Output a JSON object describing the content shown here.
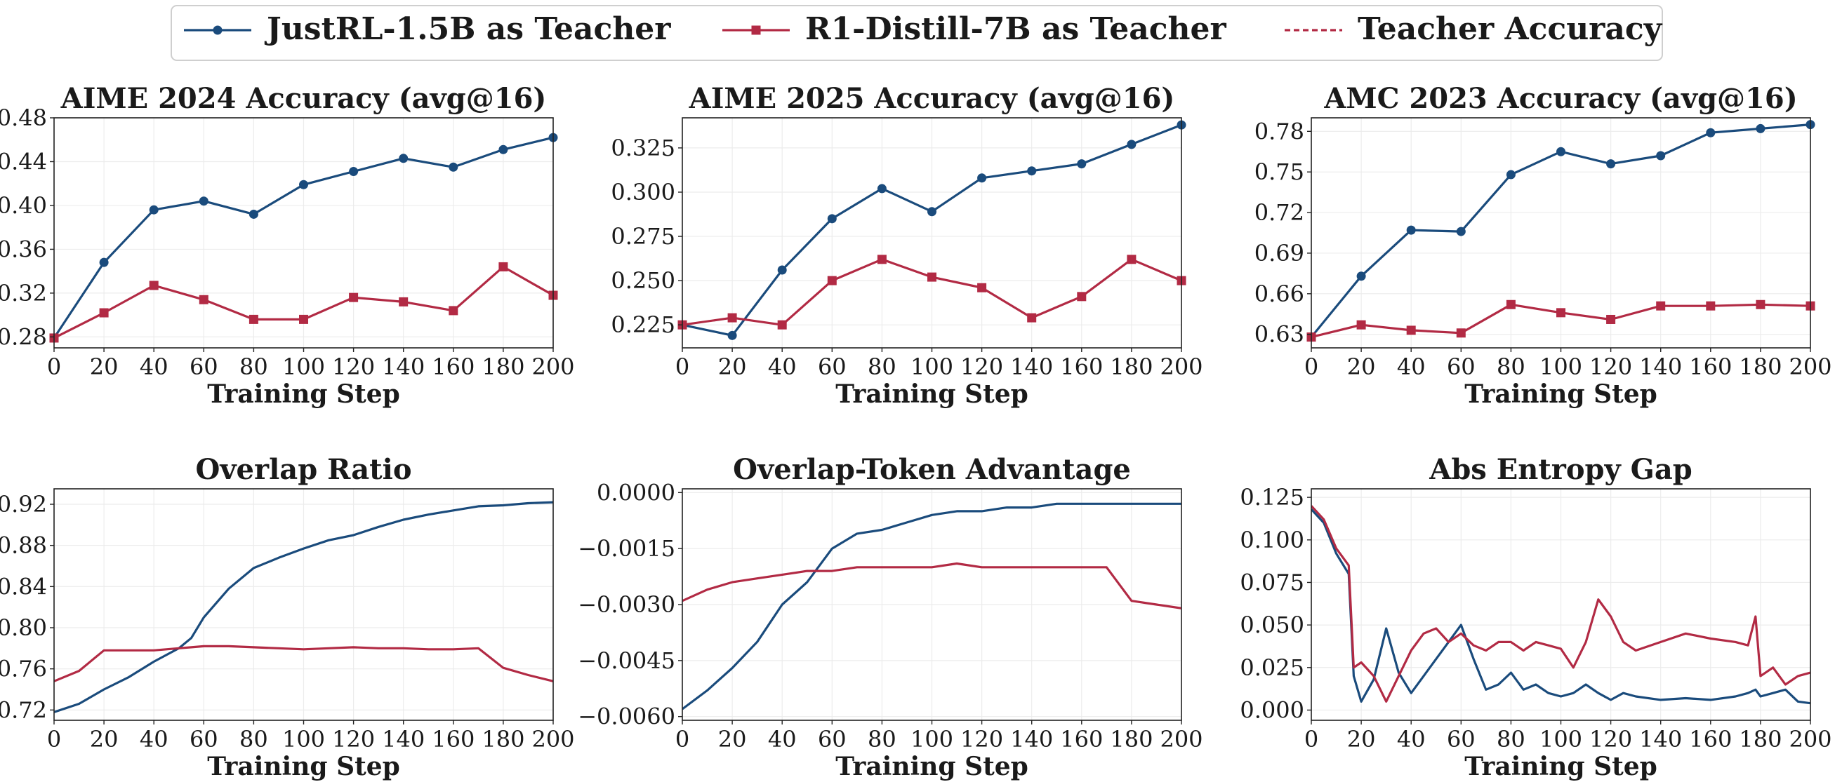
{
  "legend": {
    "placement": "top-center",
    "entries": [
      {
        "label": "JustRL-1.5B as Teacher",
        "color": "#1a4b7c",
        "marker": "circle",
        "style": "solid"
      },
      {
        "label": "R1-Distill-7B as Teacher",
        "color": "#b22a44",
        "marker": "square",
        "style": "solid"
      },
      {
        "label": "Teacher Accuracy",
        "color": "#b22a44",
        "marker": "none",
        "style": "dashed"
      }
    ]
  },
  "chart_data": [
    {
      "type": "line",
      "title": "AIME 2024 Accuracy (avg@16)",
      "xlabel": "Training Step",
      "ylabel": "",
      "xlim": [
        0,
        200
      ],
      "ylim": [
        0.27,
        0.48
      ],
      "xticks": [
        "0",
        "20",
        "40",
        "60",
        "80",
        "100",
        "120",
        "140",
        "160",
        "180",
        "200"
      ],
      "yticks": [
        "0.28",
        "0.32",
        "0.36",
        "0.40",
        "0.44",
        "0.48"
      ],
      "grid": true,
      "x": [
        0,
        20,
        40,
        60,
        80,
        100,
        120,
        140,
        160,
        180,
        200
      ],
      "series": [
        {
          "name": "JustRL-1.5B as Teacher",
          "color": "#1a4b7c",
          "marker": "circle",
          "values": [
            0.279,
            0.348,
            0.396,
            0.404,
            0.392,
            0.419,
            0.431,
            0.443,
            0.435,
            0.451,
            0.462
          ]
        },
        {
          "name": "R1-Distill-7B as Teacher",
          "color": "#b22a44",
          "marker": "square",
          "values": [
            0.279,
            0.302,
            0.327,
            0.314,
            0.296,
            0.296,
            0.316,
            0.312,
            0.304,
            0.344,
            0.318
          ]
        }
      ]
    },
    {
      "type": "line",
      "title": "AIME 2025 Accuracy (avg@16)",
      "xlabel": "Training Step",
      "ylabel": "",
      "xlim": [
        0,
        200
      ],
      "ylim": [
        0.212,
        0.342
      ],
      "xticks": [
        "0",
        "20",
        "40",
        "60",
        "80",
        "100",
        "120",
        "140",
        "160",
        "180",
        "200"
      ],
      "yticks": [
        "0.225",
        "0.250",
        "0.275",
        "0.300",
        "0.325"
      ],
      "grid": true,
      "x": [
        0,
        20,
        40,
        60,
        80,
        100,
        120,
        140,
        160,
        180,
        200
      ],
      "series": [
        {
          "name": "JustRL-1.5B as Teacher",
          "color": "#1a4b7c",
          "marker": "circle",
          "values": [
            0.225,
            0.219,
            0.256,
            0.285,
            0.302,
            0.289,
            0.308,
            0.312,
            0.316,
            0.327,
            0.338
          ]
        },
        {
          "name": "R1-Distill-7B as Teacher",
          "color": "#b22a44",
          "marker": "square",
          "values": [
            0.225,
            0.229,
            0.225,
            0.25,
            0.262,
            0.252,
            0.246,
            0.229,
            0.241,
            0.262,
            0.25
          ]
        }
      ]
    },
    {
      "type": "line",
      "title": "AMC 2023 Accuracy (avg@16)",
      "xlabel": "Training Step",
      "ylabel": "",
      "xlim": [
        0,
        200
      ],
      "ylim": [
        0.62,
        0.79
      ],
      "xticks": [
        "0",
        "20",
        "40",
        "60",
        "80",
        "100",
        "120",
        "140",
        "160",
        "180",
        "200"
      ],
      "yticks": [
        "0.63",
        "0.66",
        "0.69",
        "0.72",
        "0.75",
        "0.78"
      ],
      "grid": true,
      "x": [
        0,
        20,
        40,
        60,
        80,
        100,
        120,
        140,
        160,
        180,
        200
      ],
      "series": [
        {
          "name": "JustRL-1.5B as Teacher",
          "color": "#1a4b7c",
          "marker": "circle",
          "values": [
            0.628,
            0.673,
            0.707,
            0.706,
            0.748,
            0.765,
            0.756,
            0.762,
            0.779,
            0.782,
            0.785
          ]
        },
        {
          "name": "R1-Distill-7B as Teacher",
          "color": "#b22a44",
          "marker": "square",
          "values": [
            0.628,
            0.637,
            0.633,
            0.631,
            0.652,
            0.646,
            0.641,
            0.651,
            0.651,
            0.652,
            0.651
          ]
        }
      ]
    },
    {
      "type": "line",
      "title": "Overlap Ratio",
      "xlabel": "Training Step",
      "ylabel": "",
      "xlim": [
        0,
        200
      ],
      "ylim": [
        0.71,
        0.935
      ],
      "xticks": [
        "0",
        "20",
        "40",
        "60",
        "80",
        "100",
        "120",
        "140",
        "160",
        "180",
        "200"
      ],
      "yticks": [
        "0.72",
        "0.76",
        "0.80",
        "0.84",
        "0.88",
        "0.92"
      ],
      "grid": true,
      "x": [
        0,
        10,
        20,
        30,
        40,
        50,
        55,
        60,
        70,
        80,
        90,
        100,
        110,
        120,
        130,
        140,
        150,
        160,
        170,
        180,
        190,
        200
      ],
      "series": [
        {
          "name": "JustRL-1.5B as Teacher",
          "color": "#1a4b7c",
          "marker": "none",
          "values": [
            0.718,
            0.726,
            0.74,
            0.752,
            0.767,
            0.78,
            0.79,
            0.81,
            0.838,
            0.858,
            0.868,
            0.877,
            0.885,
            0.89,
            0.898,
            0.905,
            0.91,
            0.914,
            0.918,
            0.919,
            0.921,
            0.922
          ]
        },
        {
          "name": "R1-Distill-7B as Teacher",
          "color": "#b22a44",
          "marker": "none",
          "values": [
            0.748,
            0.758,
            0.778,
            0.778,
            0.778,
            0.78,
            0.781,
            0.782,
            0.782,
            0.781,
            0.78,
            0.779,
            0.78,
            0.781,
            0.78,
            0.78,
            0.779,
            0.779,
            0.78,
            0.761,
            0.754,
            0.748
          ]
        }
      ]
    },
    {
      "type": "line",
      "title": "Overlap-Token Advantage",
      "xlabel": "Training Step",
      "ylabel": "",
      "xlim": [
        0,
        200
      ],
      "ylim": [
        -0.0061,
        0.0001
      ],
      "xticks": [
        "0",
        "20",
        "40",
        "60",
        "80",
        "100",
        "120",
        "140",
        "160",
        "180",
        "200"
      ],
      "yticks": [
        "0.0000",
        "−0.0015",
        "−0.0030",
        "−0.0045",
        "−0.0060"
      ],
      "grid": true,
      "x": [
        0,
        10,
        20,
        30,
        40,
        50,
        60,
        70,
        80,
        90,
        100,
        110,
        120,
        130,
        140,
        150,
        160,
        170,
        180,
        190,
        200
      ],
      "series": [
        {
          "name": "JustRL-1.5B as Teacher",
          "color": "#1a4b7c",
          "marker": "none",
          "values": [
            -0.0058,
            -0.0053,
            -0.0047,
            -0.004,
            -0.003,
            -0.0024,
            -0.0015,
            -0.0011,
            -0.001,
            -0.0008,
            -0.0006,
            -0.0005,
            -0.0005,
            -0.0004,
            -0.0004,
            -0.0003,
            -0.0003,
            -0.0003,
            -0.0003,
            -0.0003,
            -0.0003
          ]
        },
        {
          "name": "R1-Distill-7B as Teacher",
          "color": "#b22a44",
          "marker": "none",
          "values": [
            -0.0029,
            -0.0026,
            -0.0024,
            -0.0023,
            -0.0022,
            -0.0021,
            -0.0021,
            -0.002,
            -0.002,
            -0.002,
            -0.002,
            -0.0019,
            -0.002,
            -0.002,
            -0.002,
            -0.002,
            -0.002,
            -0.002,
            -0.0029,
            -0.003,
            -0.0031
          ]
        }
      ]
    },
    {
      "type": "line",
      "title": "Abs Entropy Gap",
      "xlabel": "Training Step",
      "ylabel": "",
      "xlim": [
        0,
        200
      ],
      "ylim": [
        -0.006,
        0.13
      ],
      "xticks": [
        "0",
        "20",
        "40",
        "60",
        "80",
        "100",
        "120",
        "140",
        "160",
        "180",
        "200"
      ],
      "yticks": [
        "0.000",
        "0.025",
        "0.050",
        "0.075",
        "0.100",
        "0.125"
      ],
      "grid": true,
      "x": [
        0,
        5,
        10,
        15,
        17,
        20,
        25,
        30,
        35,
        40,
        45,
        50,
        55,
        60,
        65,
        70,
        75,
        80,
        85,
        90,
        95,
        100,
        105,
        110,
        115,
        120,
        125,
        130,
        140,
        150,
        160,
        170,
        175,
        178,
        180,
        185,
        190,
        195,
        200
      ],
      "series": [
        {
          "name": "JustRL-1.5B as Teacher",
          "color": "#1a4b7c",
          "marker": "none",
          "values": [
            0.118,
            0.11,
            0.092,
            0.08,
            0.02,
            0.005,
            0.018,
            0.048,
            0.022,
            0.01,
            0.02,
            0.03,
            0.04,
            0.05,
            0.03,
            0.012,
            0.015,
            0.022,
            0.012,
            0.015,
            0.01,
            0.008,
            0.01,
            0.015,
            0.01,
            0.006,
            0.01,
            0.008,
            0.006,
            0.007,
            0.006,
            0.008,
            0.01,
            0.012,
            0.008,
            0.01,
            0.012,
            0.005,
            0.004
          ]
        },
        {
          "name": "R1-Distill-7B as Teacher",
          "color": "#b22a44",
          "marker": "none",
          "values": [
            0.12,
            0.112,
            0.095,
            0.085,
            0.025,
            0.028,
            0.02,
            0.005,
            0.02,
            0.035,
            0.045,
            0.048,
            0.04,
            0.045,
            0.038,
            0.035,
            0.04,
            0.04,
            0.035,
            0.04,
            0.038,
            0.036,
            0.025,
            0.04,
            0.065,
            0.055,
            0.04,
            0.035,
            0.04,
            0.045,
            0.042,
            0.04,
            0.038,
            0.055,
            0.02,
            0.025,
            0.015,
            0.02,
            0.022
          ]
        }
      ]
    }
  ]
}
